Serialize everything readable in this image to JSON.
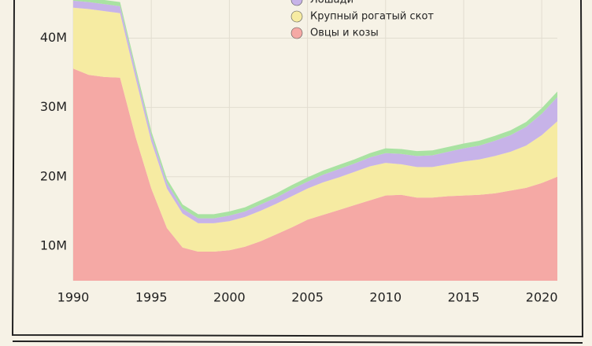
{
  "chart_data": {
    "type": "stacked_area",
    "x": [
      1990,
      1991,
      1992,
      1993,
      1994,
      1995,
      1996,
      1997,
      1998,
      1999,
      2000,
      2001,
      2002,
      2003,
      2004,
      2005,
      2006,
      2007,
      2008,
      2009,
      2010,
      2011,
      2012,
      2013,
      2014,
      2015,
      2016,
      2017,
      2018,
      2019,
      2020,
      2021
    ],
    "series": [
      {
        "name": "Овцы и козы",
        "color": "#f5a9a5",
        "values": [
          35.6,
          34.7,
          34.4,
          34.3,
          25.7,
          18.3,
          12.6,
          9.8,
          9.2,
          9.2,
          9.4,
          9.9,
          10.7,
          11.7,
          12.7,
          13.8,
          14.5,
          15.2,
          15.9,
          16.6,
          17.3,
          17.4,
          17.0,
          17.0,
          17.2,
          17.3,
          17.4,
          17.6,
          18.0,
          18.4,
          19.1,
          20.0
        ]
      },
      {
        "name": "Крупный рогатый скот",
        "color": "#f6eba2",
        "values": [
          8.8,
          9.5,
          9.5,
          9.3,
          8.5,
          6.8,
          5.7,
          4.9,
          4.1,
          4.1,
          4.2,
          4.3,
          4.4,
          4.4,
          4.5,
          4.5,
          4.7,
          4.7,
          4.8,
          4.9,
          4.7,
          4.4,
          4.4,
          4.4,
          4.6,
          4.9,
          5.1,
          5.4,
          5.6,
          6.1,
          6.9,
          8.0
        ]
      },
      {
        "name": "Лошади",
        "color": "#c7b3e8",
        "values": [
          1.0,
          1.0,
          1.0,
          1.0,
          1.0,
          0.9,
          0.8,
          0.7,
          0.7,
          0.7,
          0.8,
          0.8,
          0.9,
          0.9,
          1.0,
          1.0,
          1.1,
          1.2,
          1.2,
          1.3,
          1.4,
          1.5,
          1.6,
          1.7,
          1.8,
          1.9,
          2.0,
          2.2,
          2.4,
          2.7,
          3.1,
          3.5
        ]
      },
      {
        "color": "#a9e2a2",
        "values": [
          0.6,
          0.6,
          0.6,
          0.6,
          0.6,
          0.6,
          0.6,
          0.6,
          0.6,
          0.6,
          0.6,
          0.6,
          0.6,
          0.6,
          0.6,
          0.6,
          0.6,
          0.6,
          0.6,
          0.6,
          0.7,
          0.7,
          0.7,
          0.7,
          0.7,
          0.7,
          0.7,
          0.7,
          0.7,
          0.7,
          0.8,
          0.8
        ]
      }
    ],
    "xlim": [
      1990,
      2021
    ],
    "xticks": [
      1990,
      1995,
      2000,
      2005,
      2010,
      2015,
      2020
    ],
    "ylim": [
      5,
      45.5
    ],
    "yticks": [
      {
        "value": 10,
        "label": "10M"
      },
      {
        "value": 20,
        "label": "20M"
      },
      {
        "value": 30,
        "label": "30M"
      },
      {
        "value": 40,
        "label": "40M"
      }
    ],
    "grid": true
  }
}
